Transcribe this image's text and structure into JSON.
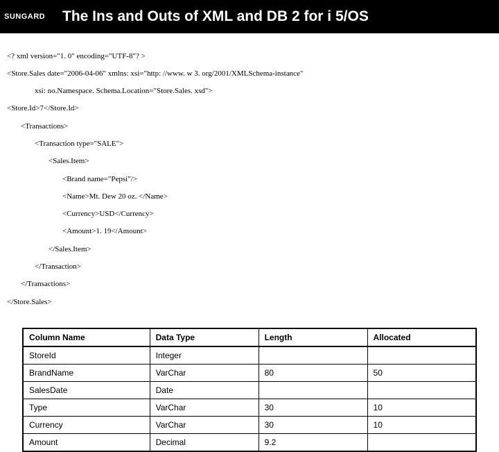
{
  "header": {
    "logo": "SUNGARD",
    "title": "The Ins and Outs of XML and DB 2 for i 5/OS"
  },
  "xml": {
    "l0": "<? xml version=\"1. 0\" encoding=\"UTF-8\"? >",
    "l1": "<Store.Sales date=\"2006-04-06\" xmlns: xsi=\"http: //www. w 3. org/2001/XMLSchema-instance\"",
    "l2": "xsi: no.Namespace. Schema.Location=\"Store.Sales. xsd\">",
    "l3": "<Store.Id>7</Store.Id>",
    "l4": "<Transactions>",
    "l5": "<Transaction type=\"SALE\">",
    "l6": "<Sales.Item>",
    "l7": "<Brand name=\"Pepsi\"/>",
    "l8": "<Name>Mt. Dew 20 oz. </Name>",
    "l9": "<Currency>USD</Currency>",
    "l10": "<Amount>1. 19</Amount>",
    "l11": "</Sales.Item>",
    "l12": "</Transaction>",
    "l13": "</Transactions>",
    "l14": "</Store.Sales>"
  },
  "table": {
    "headers": {
      "c0": "Column Name",
      "c1": "Data Type",
      "c2": "Length",
      "c3": "Allocated"
    },
    "rows": [
      {
        "c0": "StoreId",
        "c1": "Integer",
        "c2": "",
        "c3": ""
      },
      {
        "c0": "BrandName",
        "c1": "VarChar",
        "c2": "80",
        "c3": "50"
      },
      {
        "c0": "SalesDate",
        "c1": "Date",
        "c2": "",
        "c3": ""
      },
      {
        "c0": "Type",
        "c1": "VarChar",
        "c2": "30",
        "c3": "10"
      },
      {
        "c0": "Currency",
        "c1": "VarChar",
        "c2": "30",
        "c3": "10"
      },
      {
        "c0": "Amount",
        "c1": "Decimal",
        "c2": "9.2",
        "c3": ""
      }
    ]
  }
}
